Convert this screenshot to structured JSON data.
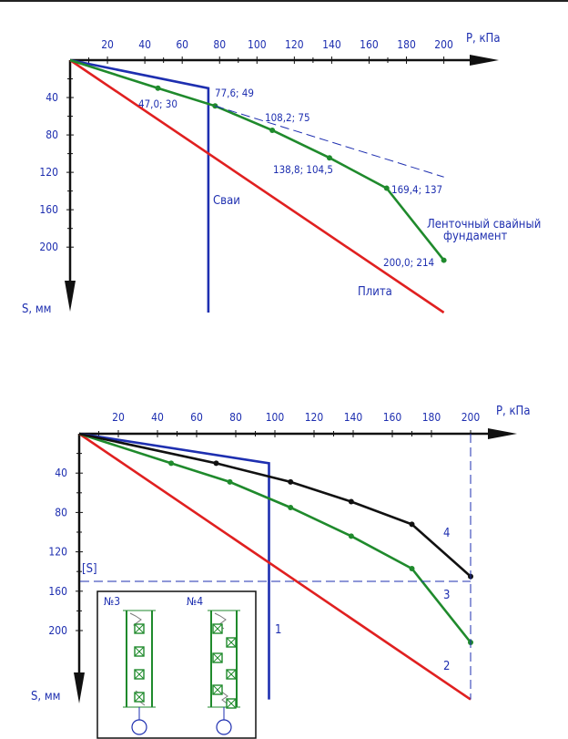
{
  "chart_data": [
    {
      "type": "line",
      "x_axis_label": "Р, кПа",
      "y_axis_label": "S, мм",
      "x_ticks": [
        "20",
        "40",
        "60",
        "80",
        "100",
        "120",
        "140",
        "160",
        "180",
        "200"
      ],
      "y_ticks": [
        "40",
        "80",
        "120",
        "160",
        "200"
      ],
      "series": [
        {
          "name": "Сваи",
          "color": "#1e2fb0",
          "x": [
            0,
            74,
            74
          ],
          "y": [
            0,
            30,
            270
          ]
        },
        {
          "name": "Плита",
          "color": "#e02020",
          "x": [
            0,
            200
          ],
          "y": [
            0,
            270
          ]
        },
        {
          "name": "Ленточный свайный фундамент",
          "color": "#1f8a2c",
          "x": [
            0,
            47,
            77.6,
            108.2,
            138.8,
            169.4,
            200
          ],
          "y": [
            0,
            30,
            49,
            75,
            104.5,
            137,
            214
          ]
        }
      ],
      "point_labels": [
        "47,0; 30",
        "77,6; 49",
        "108,2; 75",
        "138,8; 104,5",
        "169,4; 137",
        "200,0; 214"
      ]
    },
    {
      "type": "line",
      "x_axis_label": "Р, кПа",
      "y_axis_label": "S, мм",
      "x_ticks": [
        "20",
        "40",
        "60",
        "80",
        "100",
        "120",
        "140",
        "160",
        "180",
        "200"
      ],
      "y_ticks": [
        "40",
        "80",
        "120",
        "160",
        "200"
      ],
      "limit_label": "[S]",
      "limit_value": 150,
      "series": [
        {
          "name": "1",
          "color": "#1e2fb0",
          "x": [
            0,
            97,
            97
          ],
          "y": [
            0,
            30,
            270
          ]
        },
        {
          "name": "2",
          "color": "#e02020",
          "x": [
            0,
            200
          ],
          "y": [
            0,
            270
          ]
        },
        {
          "name": "3",
          "color": "#1f8a2c",
          "x": [
            0,
            47,
            77,
            108,
            139,
            170,
            200
          ],
          "y": [
            0,
            30,
            49,
            75,
            104,
            137,
            212
          ]
        },
        {
          "name": "4",
          "color": "#111111",
          "x": [
            0,
            70,
            108,
            139,
            170,
            200
          ],
          "y": [
            0,
            30,
            49,
            69,
            92,
            145
          ]
        }
      ]
    }
  ],
  "inset": {
    "label_a": "№3",
    "label_b": "№4"
  }
}
